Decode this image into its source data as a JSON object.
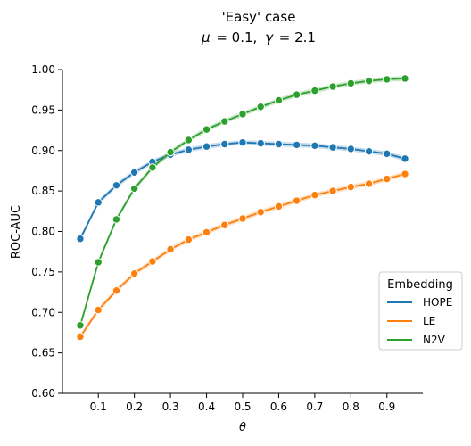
{
  "chart_data": {
    "type": "line",
    "title": "'Easy' case",
    "subtitle_prefix_mu": "μ",
    "subtitle_mu_value": "= 0.1,",
    "subtitle_prefix_gamma": "γ",
    "subtitle_gamma_value": "= 2.1",
    "xlabel": "θ",
    "ylabel": "ROC-AUC",
    "xlim": [
      0.0,
      1.0
    ],
    "ylim": [
      0.6,
      1.0
    ],
    "x_ticks": [
      "0.1",
      "0.2",
      "0.3",
      "0.4",
      "0.5",
      "0.6",
      "0.7",
      "0.8",
      "0.9"
    ],
    "y_ticks": [
      "0.60",
      "0.65",
      "0.70",
      "0.75",
      "0.80",
      "0.85",
      "0.90",
      "0.95",
      "1.00"
    ],
    "grid": false,
    "legend_title": "Embedding",
    "legend_position": "lower-right",
    "x": [
      0.05,
      0.1,
      0.15,
      0.2,
      0.25,
      0.3,
      0.35,
      0.4,
      0.45,
      0.5,
      0.55,
      0.6,
      0.65,
      0.7,
      0.75,
      0.8,
      0.85,
      0.9,
      0.95
    ],
    "series": [
      {
        "name": "HOPE",
        "color": "#1f77b4",
        "values": [
          0.791,
          0.836,
          0.857,
          0.873,
          0.886,
          0.895,
          0.901,
          0.905,
          0.908,
          0.91,
          0.909,
          0.908,
          0.907,
          0.906,
          0.904,
          0.902,
          0.899,
          0.896,
          0.89
        ]
      },
      {
        "name": "LE",
        "color": "#ff7f0e",
        "values": [
          0.67,
          0.703,
          0.727,
          0.748,
          0.763,
          0.778,
          0.79,
          0.799,
          0.808,
          0.816,
          0.824,
          0.831,
          0.838,
          0.845,
          0.85,
          0.855,
          0.859,
          0.865,
          0.871
        ]
      },
      {
        "name": "N2V",
        "color": "#2ca02c",
        "values": [
          0.684,
          0.762,
          0.815,
          0.853,
          0.879,
          0.898,
          0.913,
          0.926,
          0.936,
          0.945,
          0.954,
          0.962,
          0.969,
          0.974,
          0.979,
          0.983,
          0.986,
          0.988,
          0.989
        ]
      }
    ]
  }
}
